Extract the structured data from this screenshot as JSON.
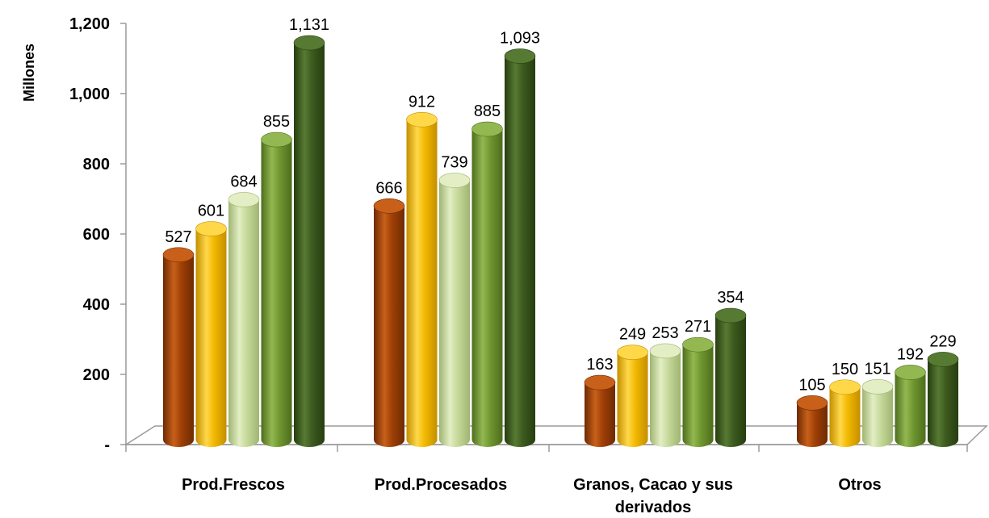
{
  "chart_data": {
    "type": "bar",
    "ylabel": "Millones",
    "ylim": [
      0,
      1200
    ],
    "y_ticks": [
      {
        "value": 0,
        "label": "-"
      },
      {
        "value": 200,
        "label": "200"
      },
      {
        "value": 400,
        "label": "400"
      },
      {
        "value": 600,
        "label": "600"
      },
      {
        "value": 800,
        "label": "800"
      },
      {
        "value": 1000,
        "label": "1,000"
      },
      {
        "value": 1200,
        "label": "1,200"
      }
    ],
    "categories": [
      [
        "Prod.Frescos"
      ],
      [
        "Prod.Procesados"
      ],
      [
        "Granos, Cacao y sus",
        "derivados"
      ],
      [
        "Otros"
      ]
    ],
    "series": [
      {
        "color": "#9e3f06",
        "light": "#c8601a",
        "dark": "#6e2a03",
        "values": [
          527,
          666,
          163,
          105
        ],
        "labels": [
          "527",
          "666",
          "163",
          "105"
        ]
      },
      {
        "color": "#f2b800",
        "light": "#ffd84a",
        "dark": "#c48f00",
        "values": [
          601,
          912,
          249,
          150
        ],
        "labels": [
          "601",
          "912",
          "249",
          "150"
        ]
      },
      {
        "color": "#c6d99a",
        "light": "#e3eec4",
        "dark": "#9fb572",
        "values": [
          684,
          739,
          253,
          151
        ],
        "labels": [
          "684",
          "739",
          "253",
          "151"
        ]
      },
      {
        "color": "#6f9630",
        "light": "#93b852",
        "dark": "#4d6d1c",
        "values": [
          855,
          885,
          271,
          192
        ],
        "labels": [
          "855",
          "885",
          "271",
          "192"
        ]
      },
      {
        "color": "#3c5a1e",
        "light": "#577a33",
        "dark": "#263d10",
        "values": [
          1131,
          1093,
          354,
          229
        ],
        "labels": [
          "1,131",
          "1,093",
          "354",
          "229"
        ]
      }
    ],
    "grid": false,
    "legend": "none"
  }
}
